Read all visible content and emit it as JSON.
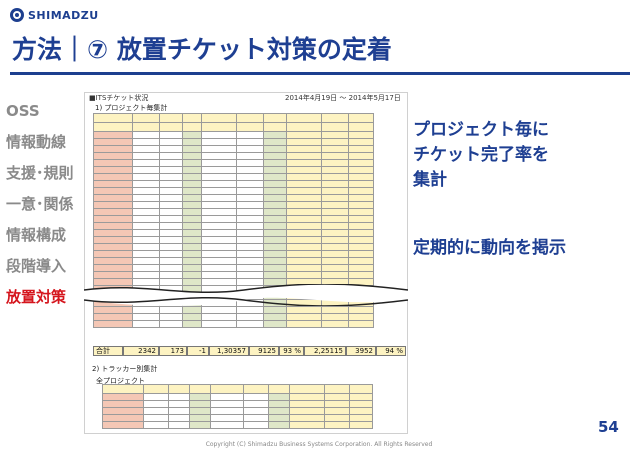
{
  "header": {
    "logo_text": "SHIMADZU",
    "title": "方法｜⑦ 放置チケット対策の定着"
  },
  "sidebar": {
    "items": [
      {
        "label": "OSS",
        "active": false
      },
      {
        "label": "情報動線",
        "active": false
      },
      {
        "label": "支援･規則",
        "active": false
      },
      {
        "label": "一意･関係",
        "active": false
      },
      {
        "label": "情報構成",
        "active": false
      },
      {
        "label": "段階導入",
        "active": false
      },
      {
        "label": "放置対策",
        "active": true
      }
    ]
  },
  "sheet": {
    "title": "■ITSチケット状況",
    "date": "2014年4月19日 〜 2014年5月17日",
    "section1": "1) プロジェクト毎集計",
    "total_label": "合計",
    "total_values": [
      "2342",
      "173",
      "-1",
      "1,30357",
      "9125",
      "93 %",
      "2,25115",
      "3952",
      "94 %"
    ],
    "section2": "2) トラッカー別集計",
    "section3": "全プロジェクト"
  },
  "message": {
    "line1": "プロジェクト毎に",
    "line2": "チケット完了率を",
    "line3": "集計",
    "line4": "定期的に動向を掲示"
  },
  "footer": {
    "page_number": "54",
    "copyright": "Copyright (C) Shimadzu Business Systems Corporation. All Rights Reserved"
  }
}
